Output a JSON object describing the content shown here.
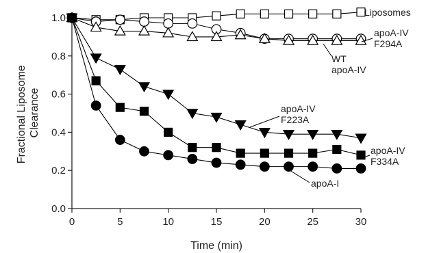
{
  "chart_data": {
    "type": "line",
    "xlabel": "Time (min)",
    "ylabel_lines": [
      "Fractional Liposome",
      "Clearance"
    ],
    "xlim": [
      0,
      30
    ],
    "ylim": [
      0.0,
      1.0
    ],
    "xticks": [
      0,
      5,
      10,
      15,
      20,
      25,
      30
    ],
    "yticks": [
      "0.0",
      "0.2",
      "0.4",
      "0.6",
      "0.8",
      "1.0"
    ],
    "grid": false,
    "x": [
      0,
      2.5,
      5,
      7.5,
      10,
      12.5,
      15,
      17.5,
      20,
      22.5,
      25,
      27.5,
      30
    ],
    "series": [
      {
        "name": "Liposomes",
        "label_lines": [
          "Liposomes"
        ],
        "marker": "square-open",
        "values": [
          1.0,
          0.99,
          0.99,
          1.0,
          1.0,
          1.0,
          1.01,
          1.02,
          1.02,
          1.02,
          1.02,
          1.02,
          1.03
        ]
      },
      {
        "name": "apoA-IV F294A",
        "label_lines": [
          "apoA-IV",
          "F294A"
        ],
        "marker": "circle-open",
        "values": [
          1.0,
          0.98,
          0.99,
          0.98,
          0.97,
          0.97,
          0.94,
          0.92,
          0.89,
          0.89,
          0.89,
          0.89,
          0.89
        ]
      },
      {
        "name": "WT apoA-IV",
        "label_lines": [
          "WT",
          "apoA-IV"
        ],
        "marker": "triangle-up-open",
        "values": [
          1.0,
          0.95,
          0.93,
          0.93,
          0.92,
          0.9,
          0.9,
          0.91,
          0.89,
          0.88,
          0.88,
          0.88,
          0.88
        ]
      },
      {
        "name": "apoA-IV F223A",
        "label_lines": [
          "apoA-IV",
          "F223A"
        ],
        "marker": "triangle-down-filled",
        "values": [
          1.0,
          0.79,
          0.73,
          0.64,
          0.6,
          0.5,
          0.48,
          0.44,
          0.4,
          0.39,
          0.39,
          0.39,
          0.37
        ]
      },
      {
        "name": "apoA-IV F334A",
        "label_lines": [
          "apoA-IV",
          "F334A"
        ],
        "marker": "square-filled",
        "values": [
          1.0,
          0.67,
          0.53,
          0.51,
          0.4,
          0.32,
          0.32,
          0.29,
          0.29,
          0.29,
          0.29,
          0.31,
          0.28
        ]
      },
      {
        "name": "apoA-I",
        "label_lines": [
          "apoA-I"
        ],
        "marker": "circle-filled",
        "values": [
          1.0,
          0.54,
          0.36,
          0.3,
          0.28,
          0.26,
          0.24,
          0.23,
          0.22,
          0.22,
          0.22,
          0.21,
          0.21
        ]
      }
    ]
  }
}
